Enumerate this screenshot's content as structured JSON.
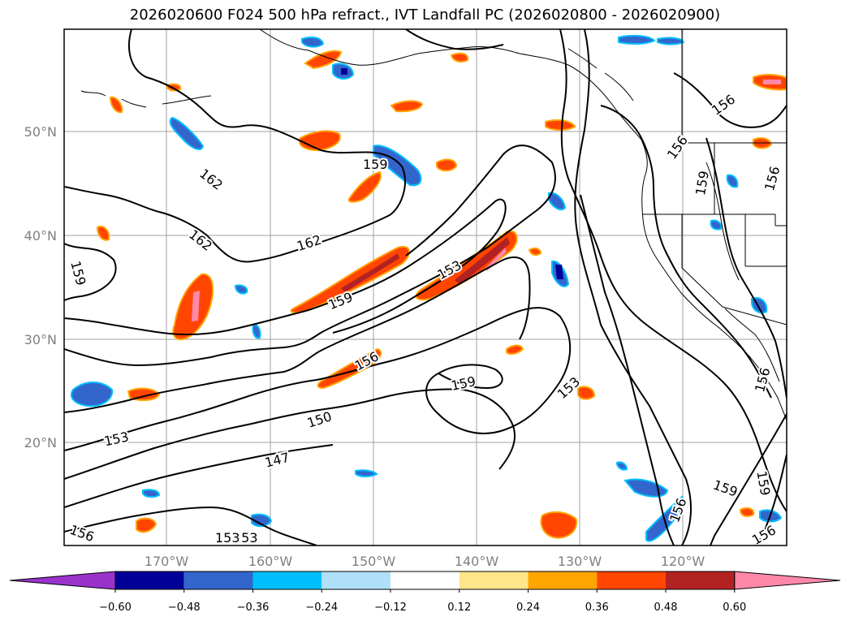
{
  "title": "2026020600 F024 500 hPa refract., IVT Landfall PC (2026020800 - 2026020900)",
  "lon_labels": [
    "170°W",
    "160°W",
    "150°W",
    "140°W",
    "130°W",
    "120°W"
  ],
  "lat_labels": [
    "50°N",
    "40°N",
    "30°N",
    "20°N"
  ],
  "contour_labels": [
    "162",
    "162",
    "162",
    "159",
    "159",
    "159",
    "159",
    "159",
    "159",
    "159",
    "153",
    "153",
    "153",
    "156",
    "156",
    "156",
    "156",
    "156",
    "156",
    "156",
    "156",
    "150",
    "147",
    "153",
    "153"
  ],
  "colorbar": {
    "ticks": [
      "−0.60",
      "−0.48",
      "−0.36",
      "−0.24",
      "−0.12",
      "0.12",
      "0.24",
      "0.36",
      "0.48",
      "0.60"
    ],
    "colors": [
      "#9933cc",
      "#000099",
      "#3366cc",
      "#00bfff",
      "#b0e0f8",
      "#ffffff",
      "#ffe68a",
      "#ffa500",
      "#ff4500",
      "#b22222",
      "#ff88aa"
    ]
  },
  "colors": {
    "contour": "#000000",
    "grid": "#a0a0a0",
    "coast": "#000000"
  }
}
